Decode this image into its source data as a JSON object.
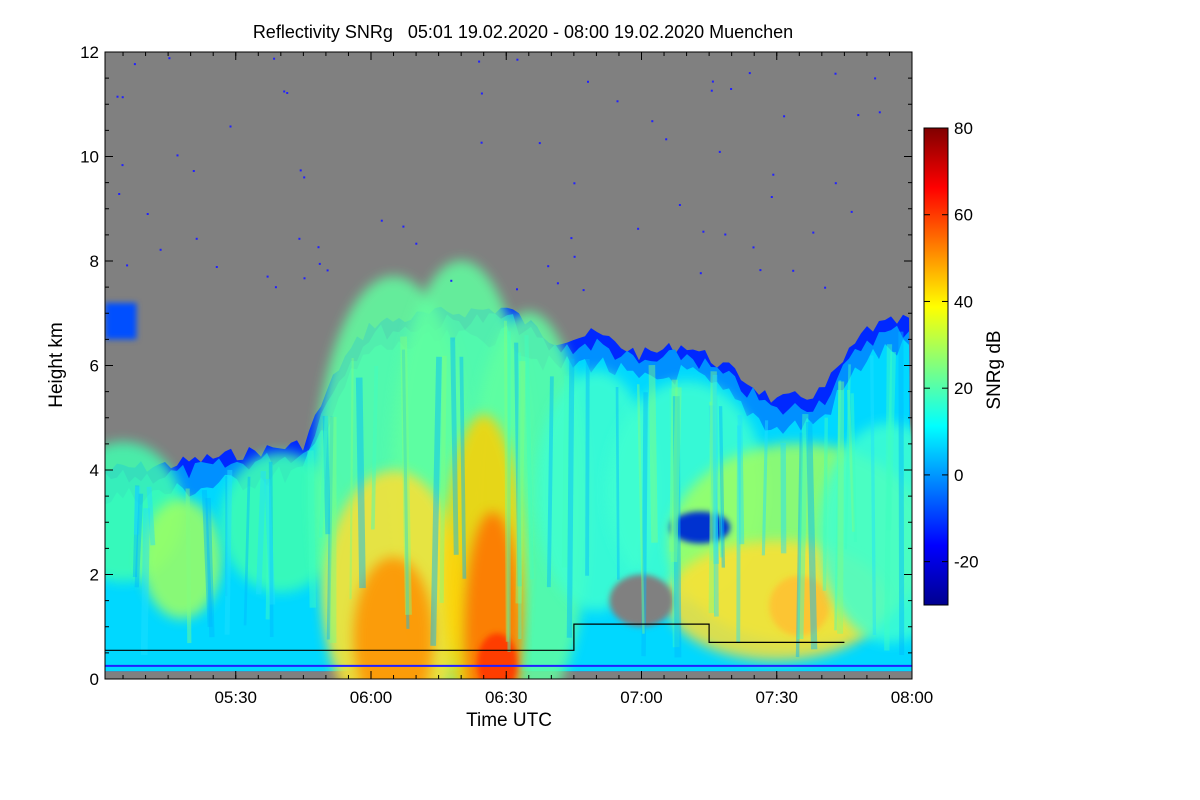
{
  "chart_data": {
    "type": "heatmap",
    "title": "Reflectivity SNRg   05:01 19.02.2020 - 08:00 19.02.2020 Muenchen",
    "xlabel": "Time UTC",
    "ylabel": "Height km",
    "xlim": [
      "05:01",
      "08:00"
    ],
    "ylim": [
      0,
      12
    ],
    "x_ticks": [
      "05:30",
      "06:00",
      "06:30",
      "07:00",
      "07:30",
      "08:00"
    ],
    "y_ticks": [
      0,
      2,
      4,
      6,
      8,
      10,
      12
    ],
    "colorbar": {
      "label": "SNRg dB",
      "range": [
        -30,
        80
      ],
      "ticks": [
        -20,
        0,
        20,
        40,
        60,
        80
      ],
      "colormap": "jet"
    },
    "background_color": "#808080",
    "echo_top_km": [
      {
        "time": "05:01",
        "top": 4.0
      },
      {
        "time": "05:15",
        "top": 4.1
      },
      {
        "time": "05:30",
        "top": 4.3
      },
      {
        "time": "05:45",
        "top": 4.5
      },
      {
        "time": "05:53",
        "top": 6.0
      },
      {
        "time": "06:00",
        "top": 6.8
      },
      {
        "time": "06:15",
        "top": 7.0
      },
      {
        "time": "06:30",
        "top": 7.1
      },
      {
        "time": "06:40",
        "top": 6.5
      },
      {
        "time": "06:50",
        "top": 6.6
      },
      {
        "time": "07:00",
        "top": 6.2
      },
      {
        "time": "07:10",
        "top": 6.4
      },
      {
        "time": "07:20",
        "top": 5.9
      },
      {
        "time": "07:30",
        "top": 5.3
      },
      {
        "time": "07:40",
        "top": 5.5
      },
      {
        "time": "07:50",
        "top": 6.7
      },
      {
        "time": "08:00",
        "top": 6.9
      }
    ],
    "upper_layer_km": {
      "start": "05:01",
      "end": "05:08",
      "bottom": 6.5,
      "top": 7.2
    },
    "black_line_km": [
      {
        "time": "05:01",
        "height": 0.55
      },
      {
        "time": "06:45",
        "height": 0.55
      },
      {
        "time": "06:45",
        "height": 1.05
      },
      {
        "time": "07:15",
        "height": 1.05
      },
      {
        "time": "07:15",
        "height": 0.7
      },
      {
        "time": "07:45",
        "height": 0.7
      }
    ],
    "blue_line_km": [
      {
        "time": "05:01",
        "height": 0.25
      },
      {
        "time": "08:00",
        "height": 0.25
      }
    ]
  }
}
